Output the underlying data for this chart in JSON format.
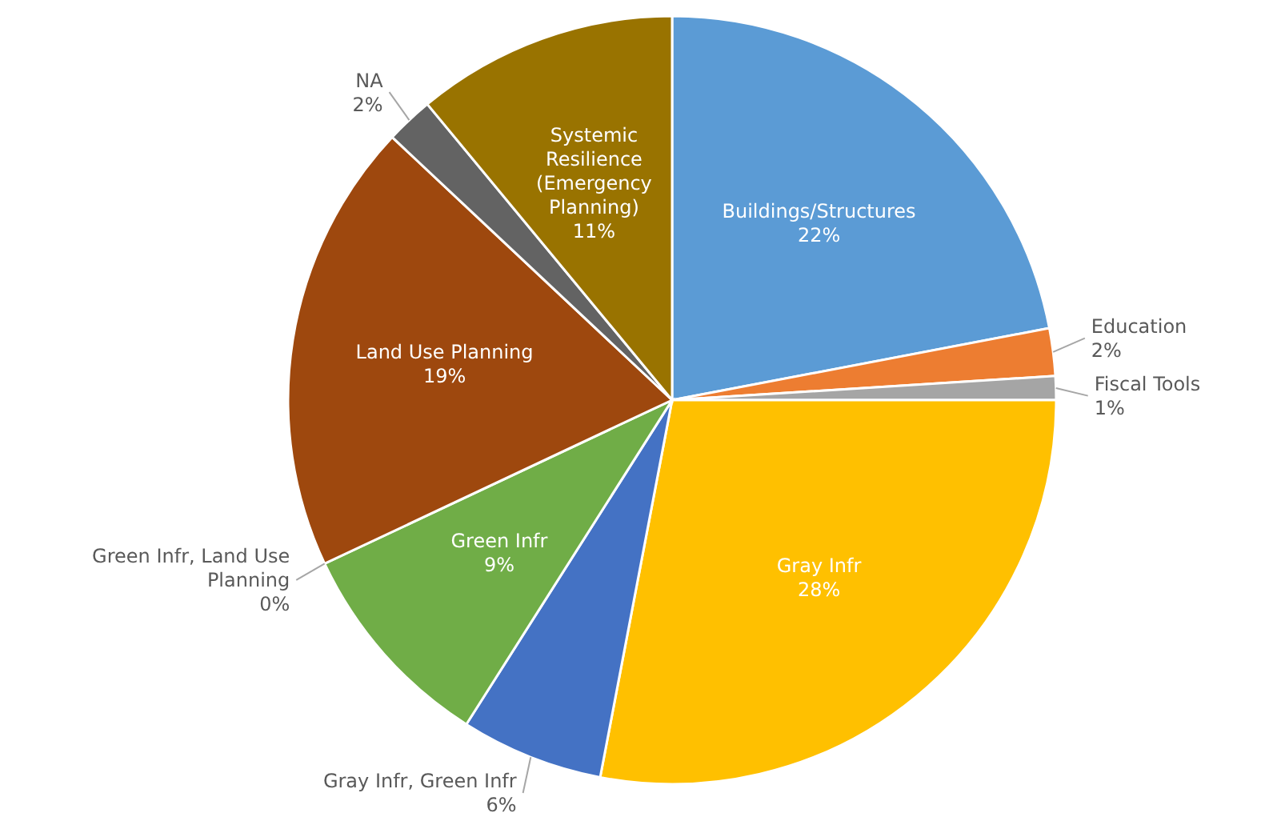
{
  "chart_data": {
    "type": "pie",
    "categories": [
      "Buildings/Structures",
      "Education",
      "Fiscal Tools",
      "Gray Infr",
      "Gray Infr, Green Infr",
      "Green Infr",
      "Green Infr, Land Use Planning",
      "Land Use Planning",
      "NA",
      "Systemic Resilience (Emergency Planning)"
    ],
    "values": [
      22,
      2,
      1,
      28,
      6,
      9,
      0,
      19,
      2,
      11
    ],
    "colors": [
      "#5b9bd5",
      "#ed7d31",
      "#a5a5a5",
      "#ffc000",
      "#4472c4",
      "#70ad47",
      null,
      "#9e480e",
      "#636363",
      "#997300"
    ],
    "value_labels": [
      "22%",
      "2%",
      "1%",
      "28%",
      "6%",
      "9%",
      "0%",
      "19%",
      "2%",
      "11%"
    ]
  }
}
